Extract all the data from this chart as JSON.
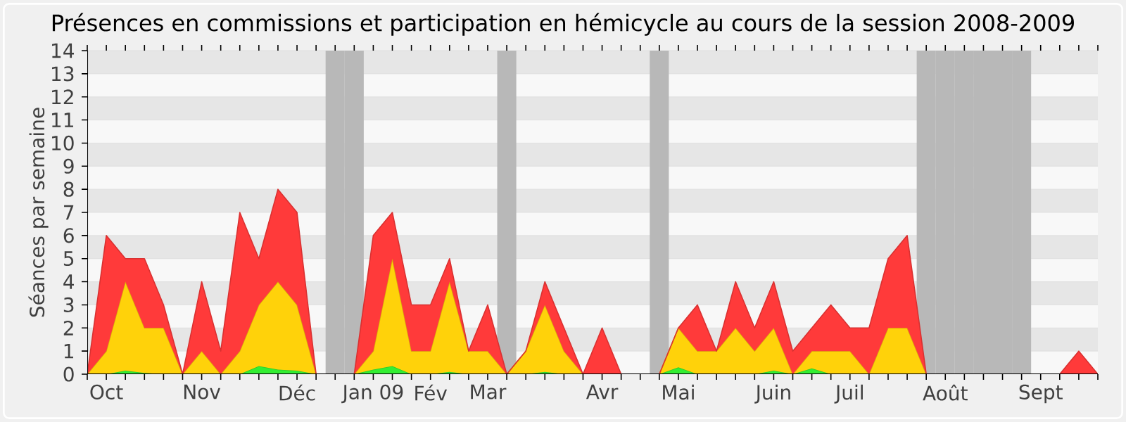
{
  "chart_data": {
    "type": "area",
    "title": "Présences en commissions et participation en hémicycle au cours de la session 2008-2009",
    "ylabel": "Séances par semaine",
    "stacked": true,
    "grid": "y",
    "categories": [
      null,
      "Oct",
      null,
      null,
      null,
      null,
      "Nov",
      null,
      null,
      null,
      null,
      "Déc",
      null,
      null,
      null,
      "Jan 09",
      null,
      null,
      "Fév",
      null,
      null,
      "Mar",
      null,
      null,
      null,
      null,
      null,
      "Avr",
      null,
      null,
      null,
      "Mai",
      null,
      null,
      null,
      null,
      "Juin",
      null,
      null,
      null,
      "Juil",
      null,
      null,
      null,
      null,
      "Août",
      null,
      null,
      null,
      null,
      "Sept",
      null,
      null,
      null
    ],
    "series": [
      {
        "color": "#33ee33",
        "values": [
          0,
          0,
          0.15,
          0.05,
          0,
          0,
          0,
          0,
          0,
          0.35,
          0.2,
          0.15,
          0,
          0,
          0,
          0.2,
          0.35,
          0,
          0,
          0.1,
          0,
          0,
          0,
          0,
          0.1,
          0,
          0,
          0,
          0,
          0,
          0,
          0.3,
          0,
          0,
          0,
          0,
          0.15,
          0,
          0.25,
          0,
          0,
          0,
          0,
          0,
          0,
          0,
          0,
          0,
          0,
          0,
          0,
          0,
          0,
          0
        ]
      },
      {
        "color": "#ffd20a",
        "values": [
          0,
          1,
          3.85,
          1.95,
          2,
          0,
          1,
          0,
          1,
          2.65,
          3.8,
          2.85,
          0,
          0,
          0,
          0.8,
          4.65,
          1,
          1,
          3.9,
          1,
          1,
          0,
          1,
          2.9,
          1,
          0,
          0,
          0,
          0,
          0,
          1.7,
          1,
          1,
          2,
          1,
          1.85,
          0,
          0.75,
          1,
          1,
          0,
          2,
          2,
          0,
          0,
          0,
          0,
          0,
          0,
          0,
          0,
          0,
          0
        ]
      },
      {
        "color": "#ff3a3a",
        "values": [
          0,
          5,
          1,
          3,
          1,
          0,
          3,
          1,
          6,
          2,
          4,
          4,
          0,
          0,
          0,
          5,
          2,
          2,
          2,
          1,
          0,
          2,
          0,
          0,
          1,
          1,
          0,
          2,
          0,
          0,
          0,
          0,
          2,
          0,
          2,
          1,
          2,
          1,
          1,
          2,
          1,
          2,
          3,
          4,
          0,
          0,
          0,
          0,
          0,
          0,
          0,
          0,
          1,
          0
        ]
      }
    ],
    "ylim": [
      0,
      14
    ],
    "yticks": [
      0,
      1,
      2,
      3,
      4,
      5,
      6,
      7,
      8,
      9,
      10,
      11,
      12,
      13,
      14
    ]
  }
}
